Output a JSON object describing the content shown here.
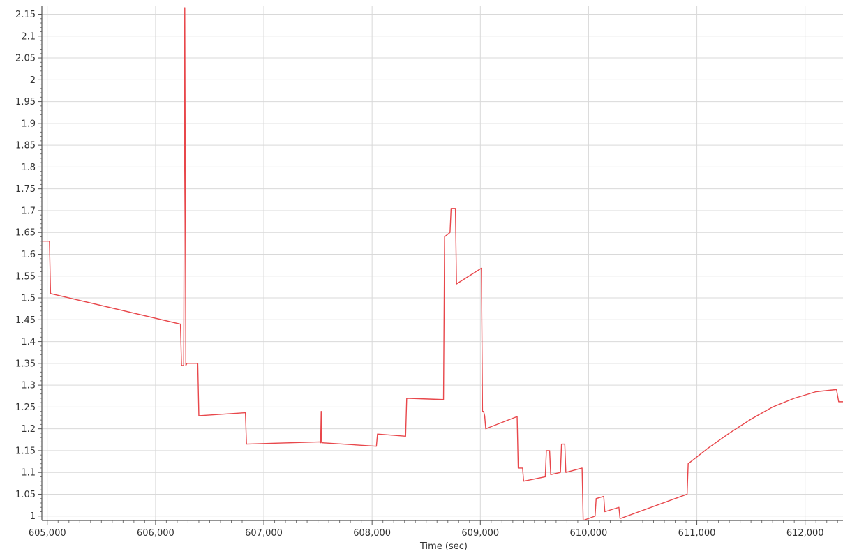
{
  "chart_data": {
    "type": "line",
    "title": "",
    "xlabel": "Time (sec)",
    "ylabel": "",
    "xlim": [
      604950,
      612350
    ],
    "ylim": [
      0.99,
      2.17
    ],
    "x_ticks": [
      605000,
      606000,
      607000,
      608000,
      609000,
      610000,
      611000,
      612000
    ],
    "x_tick_labels": [
      "605,000",
      "606,000",
      "607,000",
      "608,000",
      "609,000",
      "610,000",
      "611,000",
      "612,000"
    ],
    "y_ticks": [
      1,
      1.05,
      1.1,
      1.15,
      1.2,
      1.25,
      1.3,
      1.35,
      1.4,
      1.45,
      1.5,
      1.55,
      1.6,
      1.65,
      1.7,
      1.75,
      1.8,
      1.85,
      1.9,
      1.95,
      2,
      2.05,
      2.1,
      2.15
    ],
    "y_tick_labels": [
      "1",
      "1.05",
      "1.1",
      "1.15",
      "1.2",
      "1.25",
      "1.3",
      "1.35",
      "1.4",
      "1.45",
      "1.5",
      "1.55",
      "1.6",
      "1.65",
      "1.7",
      "1.75",
      "1.8",
      "1.85",
      "1.9",
      "1.95",
      "2",
      "2.05",
      "2.1",
      "2.15"
    ],
    "grid": true,
    "legend": "none",
    "series_color": "#e8474b",
    "series": [
      {
        "x": [
          604950,
          605020,
          605030,
          606230,
          606240,
          606260,
          606270,
          606280,
          606290,
          606390,
          606400,
          606830,
          606840,
          607520,
          607525,
          607530,
          607535,
          607540,
          608040,
          608050,
          608310,
          608320,
          608660,
          608670,
          608720,
          608730,
          608770,
          608780,
          609010,
          609020,
          609030,
          609040,
          609050,
          609340,
          609350,
          609390,
          609400,
          609600,
          609610,
          609640,
          609650,
          609740,
          609750,
          609780,
          609790,
          609940,
          609950,
          610060,
          610070,
          610140,
          610150,
          610280,
          610290,
          610300,
          610910,
          610920,
          611100,
          611300,
          611500,
          611700,
          611900,
          612100,
          612290,
          612310,
          612350
        ],
        "y": [
          1.63,
          1.63,
          1.51,
          1.44,
          1.345,
          1.345,
          2.165,
          1.345,
          1.35,
          1.35,
          1.23,
          1.237,
          1.165,
          1.17,
          1.168,
          1.24,
          1.168,
          1.168,
          1.16,
          1.188,
          1.183,
          1.27,
          1.267,
          1.64,
          1.65,
          1.705,
          1.705,
          1.532,
          1.568,
          1.24,
          1.24,
          1.23,
          1.2,
          1.228,
          1.11,
          1.11,
          1.08,
          1.09,
          1.15,
          1.15,
          1.095,
          1.1,
          1.165,
          1.165,
          1.1,
          1.11,
          0.99,
          1.0,
          1.04,
          1.045,
          1.01,
          1.02,
          0.995,
          0.995,
          1.05,
          1.12,
          1.155,
          1.19,
          1.222,
          1.25,
          1.27,
          1.285,
          1.29,
          1.262,
          1.262
        ]
      }
    ]
  }
}
